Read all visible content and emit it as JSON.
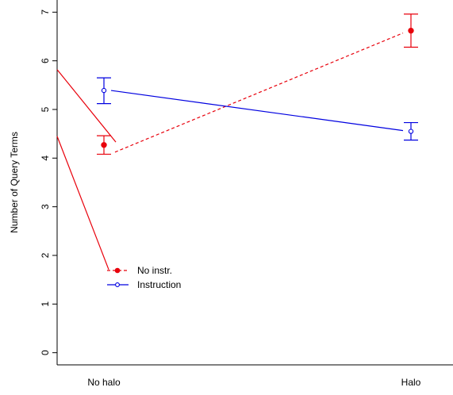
{
  "chart_data": {
    "type": "line",
    "title": "",
    "xlabel": "",
    "ylabel": "Number of Query Terms",
    "categories": [
      "No halo",
      "Halo"
    ],
    "ylim": [
      -0.25,
      7.25
    ],
    "yticks": [
      0,
      1,
      2,
      3,
      4,
      5,
      6,
      7
    ],
    "grid": false,
    "legend_placement": "lower-left",
    "series": [
      {
        "name": "No instr.",
        "color": "#e8000b",
        "line_style": "dashed",
        "marker": "filled-circle",
        "values": [
          4.27,
          6.62
        ],
        "ci_low": [
          4.08,
          6.28
        ],
        "ci_high": [
          4.46,
          6.96
        ]
      },
      {
        "name": "Instruction",
        "color": "#0000e0",
        "line_style": "solid",
        "marker": "open-circle",
        "values": [
          5.39,
          4.55
        ],
        "ci_low": [
          5.12,
          4.37
        ],
        "ci_high": [
          5.65,
          4.73
        ]
      }
    ]
  }
}
